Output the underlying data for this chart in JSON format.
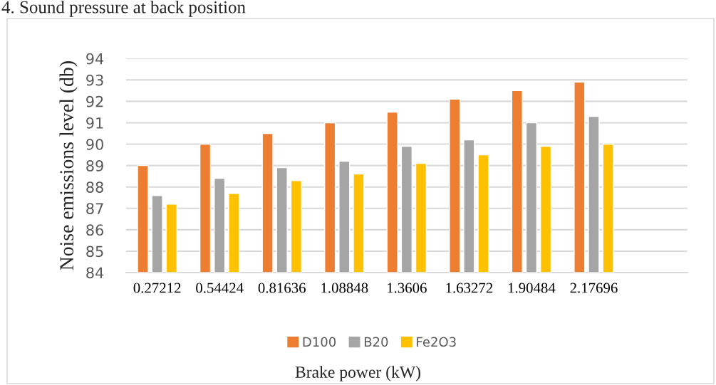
{
  "chart_data": {
    "type": "bar",
    "title": "4. Sound pressure at back position",
    "xlabel": "Brake power (kW)",
    "ylabel": "Noise emissions level (db)",
    "categories": [
      "0.27212",
      "0.54424",
      "0.81636",
      "1.08848",
      "1.3606",
      "1.63272",
      "1.90484",
      "2.17696",
      null
    ],
    "series": [
      {
        "name": "D100",
        "color": "#ed7d31",
        "values": [
          89,
          90,
          90.5,
          91,
          91.5,
          92.1,
          92.5,
          92.9,
          null
        ]
      },
      {
        "name": "B20",
        "color": "#a5a5a5",
        "values": [
          87.6,
          88.4,
          88.9,
          89.2,
          89.9,
          90.2,
          91.0,
          91.3,
          null
        ]
      },
      {
        "name": "Fe2O3",
        "color": "#ffc000",
        "values": [
          87.2,
          87.7,
          88.3,
          88.6,
          89.1,
          89.5,
          89.9,
          90.0,
          null
        ]
      }
    ],
    "ylim": [
      84,
      94
    ],
    "yticks": [
      84,
      85,
      86,
      87,
      88,
      89,
      90,
      91,
      92,
      93,
      94
    ],
    "grid": "y",
    "legend": "bottom"
  }
}
